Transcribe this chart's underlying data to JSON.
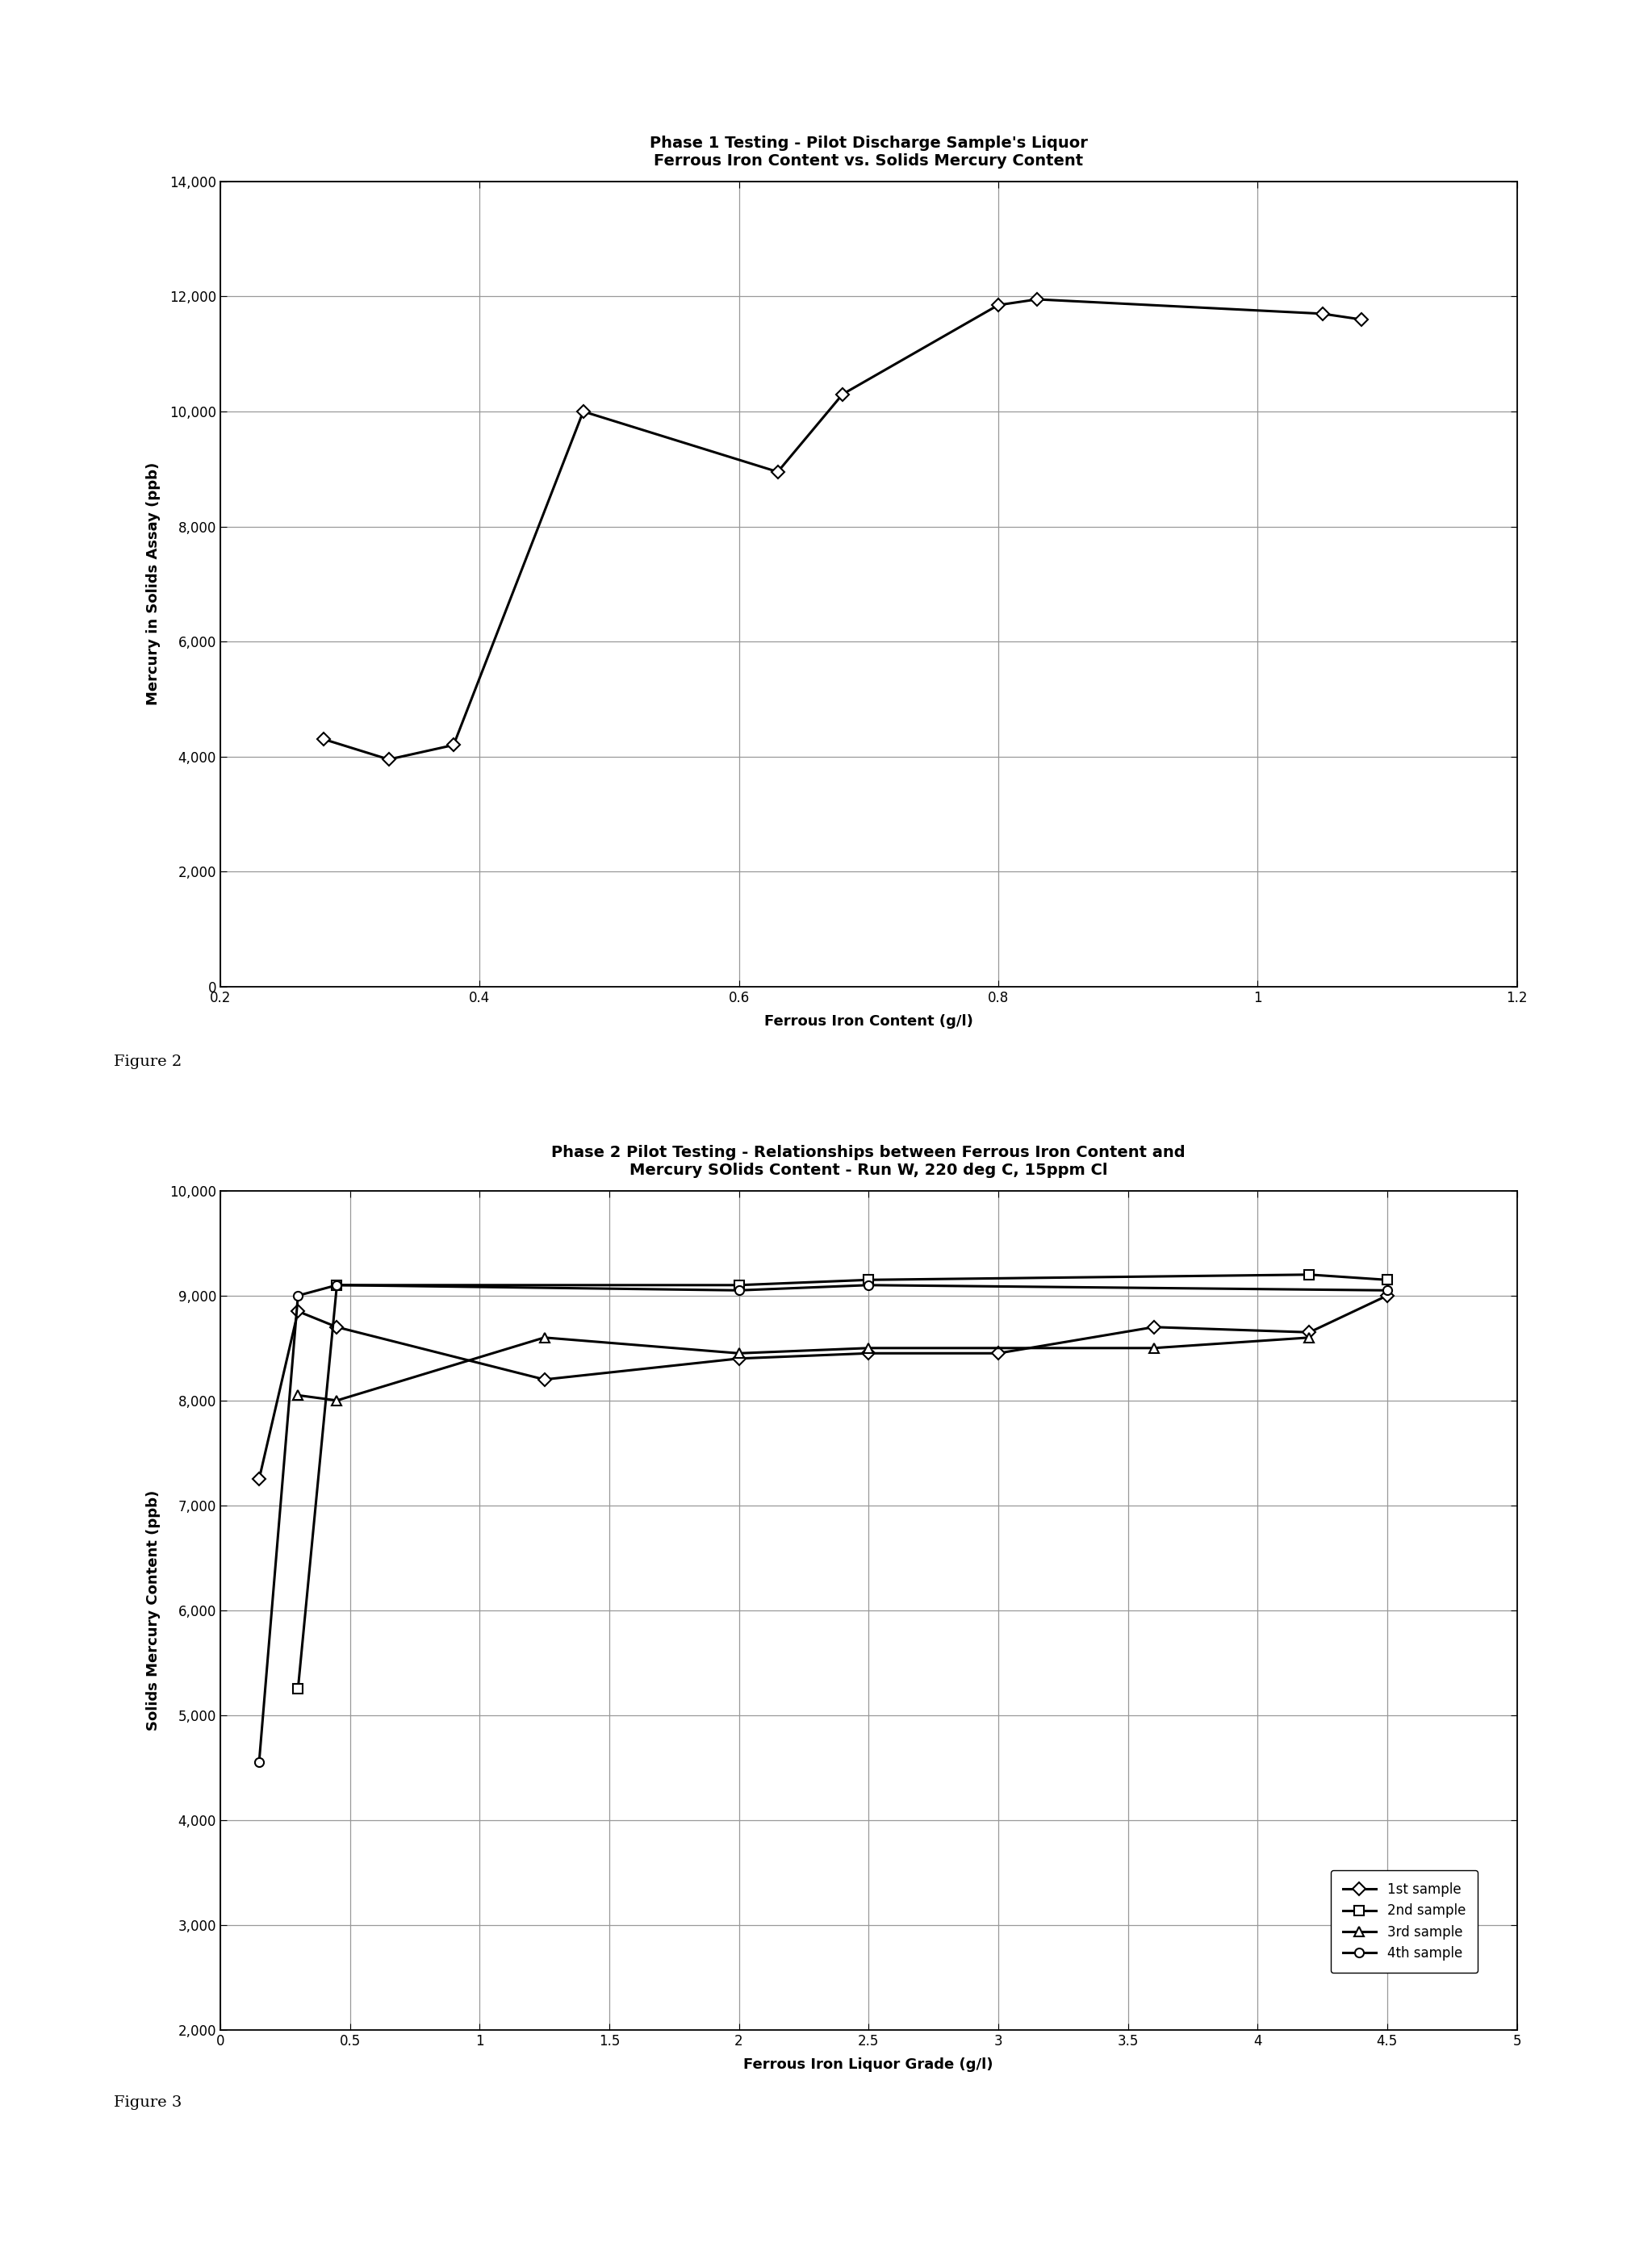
{
  "fig1": {
    "title_line1": "Phase 1 Testing - Pilot Discharge Sample's Liquor",
    "title_line2": "Ferrous Iron Content vs. Solids Mercury Content",
    "xlabel": "Ferrous Iron Content (g/l)",
    "ylabel": "Mercury in Solids Assay (ppb)",
    "x": [
      0.28,
      0.33,
      0.38,
      0.48,
      0.63,
      0.68,
      0.8,
      0.83,
      1.05,
      1.08
    ],
    "y": [
      4300,
      3950,
      4200,
      10000,
      8950,
      10300,
      11850,
      11950,
      11700,
      11600
    ],
    "xlim": [
      0.2,
      1.2
    ],
    "ylim": [
      0,
      14000
    ],
    "xticks": [
      0.2,
      0.4,
      0.6,
      0.8,
      1.0,
      1.2
    ],
    "yticks": [
      0,
      2000,
      4000,
      6000,
      8000,
      10000,
      12000,
      14000
    ],
    "figure_label": "Figure 2"
  },
  "fig2": {
    "title_line1": "Phase 2 Pilot Testing - Relationships between Ferrous Iron Content and",
    "title_line2": "Mercury SOlids Content - Run W, 220 deg C, 15ppm Cl",
    "xlabel": "Ferrous Iron Liquor Grade (g/l)",
    "ylabel": "Solids Mercury Content (ppb)",
    "series_order": [
      "1st sample",
      "2nd sample",
      "3rd sample",
      "4th sample"
    ],
    "series": {
      "1st sample": {
        "x": [
          0.15,
          0.3,
          0.45,
          1.25,
          2.0,
          2.5,
          3.0,
          3.6,
          4.2,
          4.5
        ],
        "y": [
          7250,
          8850,
          8700,
          8200,
          8400,
          8450,
          8450,
          8700,
          8650,
          9000
        ],
        "marker": "D"
      },
      "2nd sample": {
        "x": [
          0.3,
          0.45,
          2.0,
          2.5,
          4.2,
          4.5
        ],
        "y": [
          5250,
          9100,
          9100,
          9150,
          9200,
          9150
        ],
        "marker": "s"
      },
      "3rd sample": {
        "x": [
          0.3,
          0.45,
          1.25,
          2.0,
          2.5,
          3.6,
          4.2
        ],
        "y": [
          8050,
          8000,
          8600,
          8450,
          8500,
          8500,
          8600
        ],
        "marker": "^"
      },
      "4th sample": {
        "x": [
          0.15,
          0.3,
          0.45,
          2.0,
          2.5,
          4.5
        ],
        "y": [
          4550,
          9000,
          9100,
          9050,
          9100,
          9050
        ],
        "marker": "o"
      }
    },
    "xlim": [
      0.0,
      5.0
    ],
    "ylim": [
      2000,
      10000
    ],
    "xticks": [
      0.0,
      0.5,
      1.0,
      1.5,
      2.0,
      2.5,
      3.0,
      3.5,
      4.0,
      4.5,
      5.0
    ],
    "yticks": [
      2000,
      3000,
      4000,
      5000,
      6000,
      7000,
      8000,
      9000,
      10000
    ],
    "figure_label": "Figure 3"
  },
  "bg_color": "#ffffff",
  "line_color": "#000000",
  "title_fontsize": 14,
  "label_fontsize": 13,
  "tick_fontsize": 12,
  "legend_fontsize": 12,
  "figlabel_fontsize": 14
}
